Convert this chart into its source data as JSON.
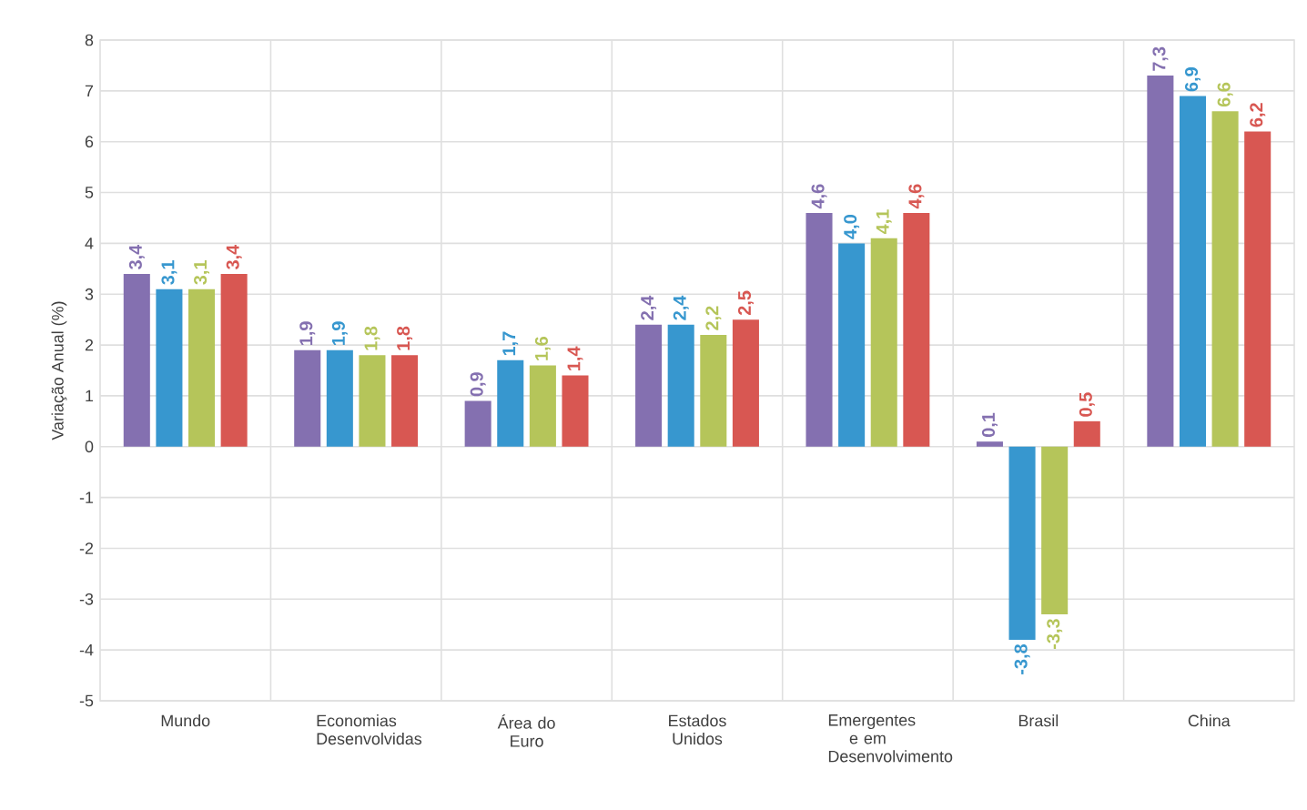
{
  "chart_data": {
    "type": "bar",
    "ylabel": "Variação Anual (%)",
    "categories": [
      "Mundo",
      "Economias Desenvolvidas",
      "Área do Euro",
      "Estados Unidos",
      "Emergentes e em Desenvolvimento",
      "Brasil",
      "China"
    ],
    "series": [
      {
        "color": "#8470b0",
        "values": [
          3.4,
          1.9,
          0.9,
          2.4,
          4.6,
          0.1,
          7.3
        ],
        "value_labels": [
          "3,4",
          "1,9",
          "0,9",
          "2,4",
          "4,6",
          "0,1",
          "7,3"
        ]
      },
      {
        "color": "#3797cf",
        "values": [
          3.1,
          1.9,
          1.7,
          2.4,
          4.0,
          -3.8,
          6.9
        ],
        "value_labels": [
          "3,1",
          "1,9",
          "1,7",
          "2,4",
          "4,0",
          "-3,8",
          "6,9"
        ]
      },
      {
        "color": "#b5c55a",
        "values": [
          3.1,
          1.8,
          1.6,
          2.2,
          4.1,
          -3.3,
          6.6
        ],
        "value_labels": [
          "3,1",
          "1,8",
          "1,6",
          "2,2",
          "4,1",
          "-3,3",
          "6,6"
        ]
      },
      {
        "color": "#d85752",
        "values": [
          3.4,
          1.8,
          1.4,
          2.5,
          4.6,
          0.5,
          6.2
        ],
        "value_labels": [
          "3,4",
          "1,8",
          "1,4",
          "2,5",
          "4,6",
          "0,5",
          "6,2"
        ]
      }
    ],
    "ylim": [
      -5,
      8
    ],
    "yticks": [
      -5,
      -4,
      -3,
      -2,
      -1,
      0,
      1,
      2,
      3,
      4,
      5,
      6,
      7,
      8
    ],
    "grid": true
  }
}
